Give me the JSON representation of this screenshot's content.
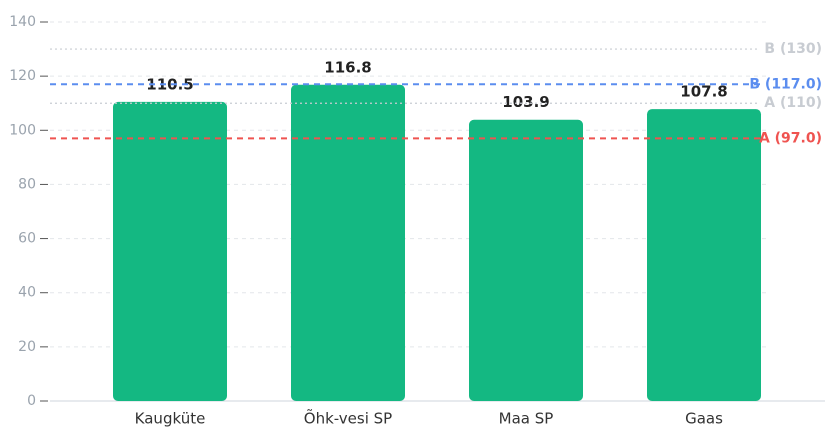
{
  "chart_data": {
    "type": "bar",
    "categories": [
      "Kaugküte",
      "Õhk-vesi SP",
      "Maa SP",
      "Gaas"
    ],
    "values": [
      110.5,
      116.8,
      103.9,
      107.8
    ],
    "color": "#14b882",
    "ylim": [
      0,
      140
    ],
    "yticks": [
      0,
      20,
      40,
      60,
      80,
      100,
      120,
      140
    ],
    "grid": true,
    "reference_lines": [
      {
        "label": "B (130)",
        "value": 130,
        "color": "#c8ccd2",
        "style": "dotted"
      },
      {
        "label": "A (110)",
        "value": 110,
        "color": "#c8ccd2",
        "style": "dotted"
      },
      {
        "label": "B (117.0)",
        "value": 117,
        "color": "#5b8def",
        "style": "dashed"
      },
      {
        "label": "A (97.0)",
        "value": 97,
        "color": "#ef5350",
        "style": "dashed"
      }
    ]
  }
}
